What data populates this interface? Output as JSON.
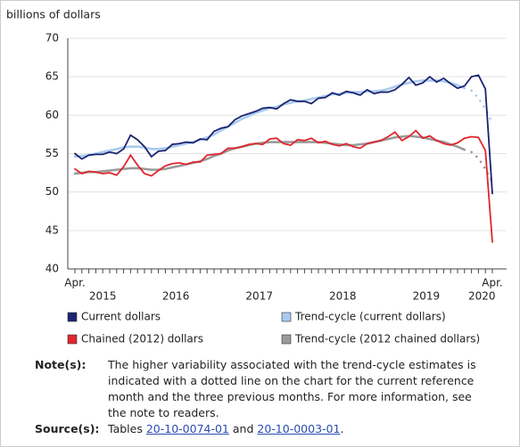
{
  "chart_data": {
    "type": "line",
    "y_axis_label": "billions of dollars",
    "ylim": [
      40,
      70
    ],
    "yticks": [
      40,
      45,
      50,
      55,
      60,
      65,
      70
    ],
    "grid": true,
    "categories": [
      "Apr.",
      null,
      null,
      null,
      null,
      null,
      null,
      null,
      null,
      null,
      null,
      null,
      null,
      null,
      null,
      null,
      null,
      null,
      null,
      null,
      null,
      null,
      null,
      null,
      null,
      null,
      null,
      null,
      null,
      null,
      null,
      null,
      null,
      null,
      null,
      null,
      null,
      null,
      null,
      null,
      null,
      null,
      null,
      null,
      null,
      null,
      null,
      null,
      null,
      null,
      null,
      null,
      null,
      null,
      null,
      null,
      null,
      null,
      null,
      null,
      "Apr."
    ],
    "year_labels": [
      "2015",
      "2016",
      "2017",
      "2018",
      "2019",
      "2020"
    ],
    "series": [
      {
        "name": "Current dollars",
        "color": "#1b2470",
        "values": [
          55.0,
          54.3,
          54.8,
          54.9,
          54.9,
          55.2,
          55.0,
          55.6,
          57.4,
          56.8,
          55.9,
          54.6,
          55.3,
          55.4,
          56.2,
          56.3,
          56.5,
          56.4,
          56.9,
          56.8,
          57.9,
          58.3,
          58.5,
          59.4,
          59.9,
          60.2,
          60.5,
          60.9,
          61.0,
          60.8,
          61.5,
          62.0,
          61.8,
          61.8,
          61.5,
          62.2,
          62.3,
          62.9,
          62.6,
          63.1,
          62.9,
          62.6,
          63.3,
          62.8,
          63.0,
          63.0,
          63.3,
          64.0,
          64.9,
          63.9,
          64.2,
          65.0,
          64.3,
          64.8,
          64.1,
          63.5,
          63.8,
          65.0,
          65.2,
          63.4,
          49.8
        ]
      },
      {
        "name": "Trend-cycle (current dollars)",
        "color": "#a9cbee",
        "values": [
          54.6,
          54.7,
          54.8,
          55.0,
          55.2,
          55.4,
          55.6,
          55.8,
          55.9,
          55.9,
          55.8,
          55.6,
          55.6,
          55.7,
          55.9,
          56.1,
          56.3,
          56.5,
          56.8,
          57.1,
          57.5,
          58.0,
          58.5,
          59.0,
          59.5,
          59.9,
          60.3,
          60.6,
          60.9,
          61.1,
          61.4,
          61.6,
          61.8,
          61.9,
          62.1,
          62.3,
          62.5,
          62.7,
          62.8,
          62.9,
          63.0,
          63.0,
          63.1,
          63.1,
          63.2,
          63.4,
          63.7,
          64.0,
          64.2,
          64.4,
          64.5,
          64.5,
          64.5,
          64.4,
          64.2,
          63.9,
          63.5,
          63.2,
          62.2,
          60.8,
          59.0
        ]
      },
      {
        "name": "Chained (2012) dollars",
        "color": "#e0262f",
        "values": [
          53.0,
          52.4,
          52.7,
          52.6,
          52.4,
          52.5,
          52.2,
          53.3,
          54.8,
          53.5,
          52.4,
          52.1,
          52.8,
          53.4,
          53.7,
          53.8,
          53.6,
          53.9,
          53.9,
          54.8,
          54.9,
          55.0,
          55.7,
          55.7,
          55.9,
          56.2,
          56.3,
          56.2,
          56.9,
          57.0,
          56.3,
          56.1,
          56.8,
          56.7,
          57.0,
          56.4,
          56.6,
          56.2,
          56.0,
          56.3,
          55.9,
          55.7,
          56.3,
          56.5,
          56.7,
          57.2,
          57.8,
          56.7,
          57.2,
          58.0,
          57.0,
          57.3,
          56.7,
          56.3,
          56.1,
          56.4,
          57.0,
          57.2,
          57.1,
          55.4,
          43.5
        ]
      },
      {
        "name": "Trend-cycle (2012 chained dollars)",
        "color": "#9a9a9a",
        "values": [
          52.4,
          52.5,
          52.6,
          52.6,
          52.7,
          52.8,
          52.9,
          53.0,
          53.1,
          53.1,
          53.0,
          52.9,
          52.9,
          53.0,
          53.2,
          53.4,
          53.6,
          53.8,
          54.0,
          54.3,
          54.7,
          55.0,
          55.4,
          55.7,
          55.9,
          56.1,
          56.3,
          56.4,
          56.5,
          56.5,
          56.5,
          56.5,
          56.5,
          56.5,
          56.5,
          56.5,
          56.4,
          56.3,
          56.2,
          56.1,
          56.1,
          56.2,
          56.3,
          56.5,
          56.7,
          56.9,
          57.1,
          57.2,
          57.3,
          57.2,
          57.1,
          56.9,
          56.7,
          56.5,
          56.2,
          55.9,
          55.5,
          55.2,
          54.4,
          53.0,
          51.3
        ]
      }
    ]
  },
  "notes": {
    "label": "Note(s):",
    "text": "The higher variability associated with the trend-cycle estimates is indicated with a dotted line on the chart for the current reference month and the three previous months. For more information, see the note to readers."
  },
  "sources": {
    "label": "Source(s):",
    "prefix": "Tables",
    "link1": "20-10-0074-01",
    "joiner": "and",
    "link2": "20-10-0003-01",
    "suffix": "."
  }
}
